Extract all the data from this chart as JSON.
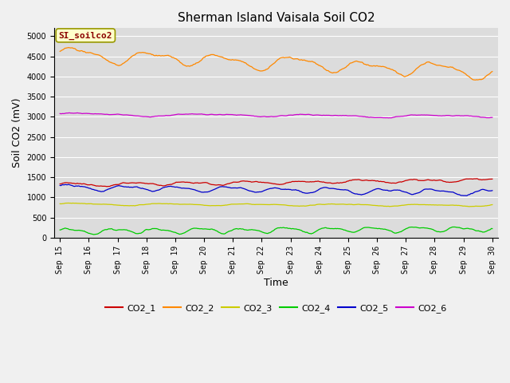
{
  "title": "Sherman Island Vaisala Soil CO2",
  "xlabel": "Time",
  "ylabel": "Soil CO2 (mV)",
  "ylim": [
    0,
    5200
  ],
  "yticks": [
    0,
    500,
    1000,
    1500,
    2000,
    2500,
    3000,
    3500,
    4000,
    4500,
    5000
  ],
  "xtick_labels": [
    "Sep 15",
    "Sep 16",
    "Sep 17",
    "Sep 18",
    "Sep 19",
    "Sep 20",
    "Sep 21",
    "Sep 22",
    "Sep 23",
    "Sep 24",
    "Sep 25",
    "Sep 26",
    "Sep 27",
    "Sep 28",
    "Sep 29",
    "Sep 30"
  ],
  "series": {
    "CO2_1": {
      "color": "#cc0000",
      "base": 1310,
      "amp": 50,
      "trend": 120,
      "noise": 15,
      "period": 2.0
    },
    "CO2_2": {
      "color": "#ff8800",
      "base": 4560,
      "amp": 200,
      "trend": -450,
      "noise": 25,
      "period": 2.5
    },
    "CO2_3": {
      "color": "#cccc00",
      "base": 830,
      "amp": 30,
      "trend": -30,
      "noise": 8,
      "period": 3.0
    },
    "CO2_4": {
      "color": "#00cc00",
      "base": 155,
      "amp": 80,
      "trend": 60,
      "noise": 15,
      "period": 1.5
    },
    "CO2_5": {
      "color": "#0000cc",
      "base": 1250,
      "amp": 80,
      "trend": -130,
      "noise": 15,
      "period": 1.8
    },
    "CO2_6": {
      "color": "#cc00cc",
      "base": 3060,
      "amp": 40,
      "trend": -55,
      "noise": 10,
      "period": 4.0
    }
  },
  "inset_label": "SI_soilco2",
  "background_color": "#dcdcdc",
  "fig_facecolor": "#f0f0f0",
  "title_fontsize": 11,
  "axis_label_fontsize": 9,
  "tick_fontsize": 7,
  "legend_fontsize": 8
}
